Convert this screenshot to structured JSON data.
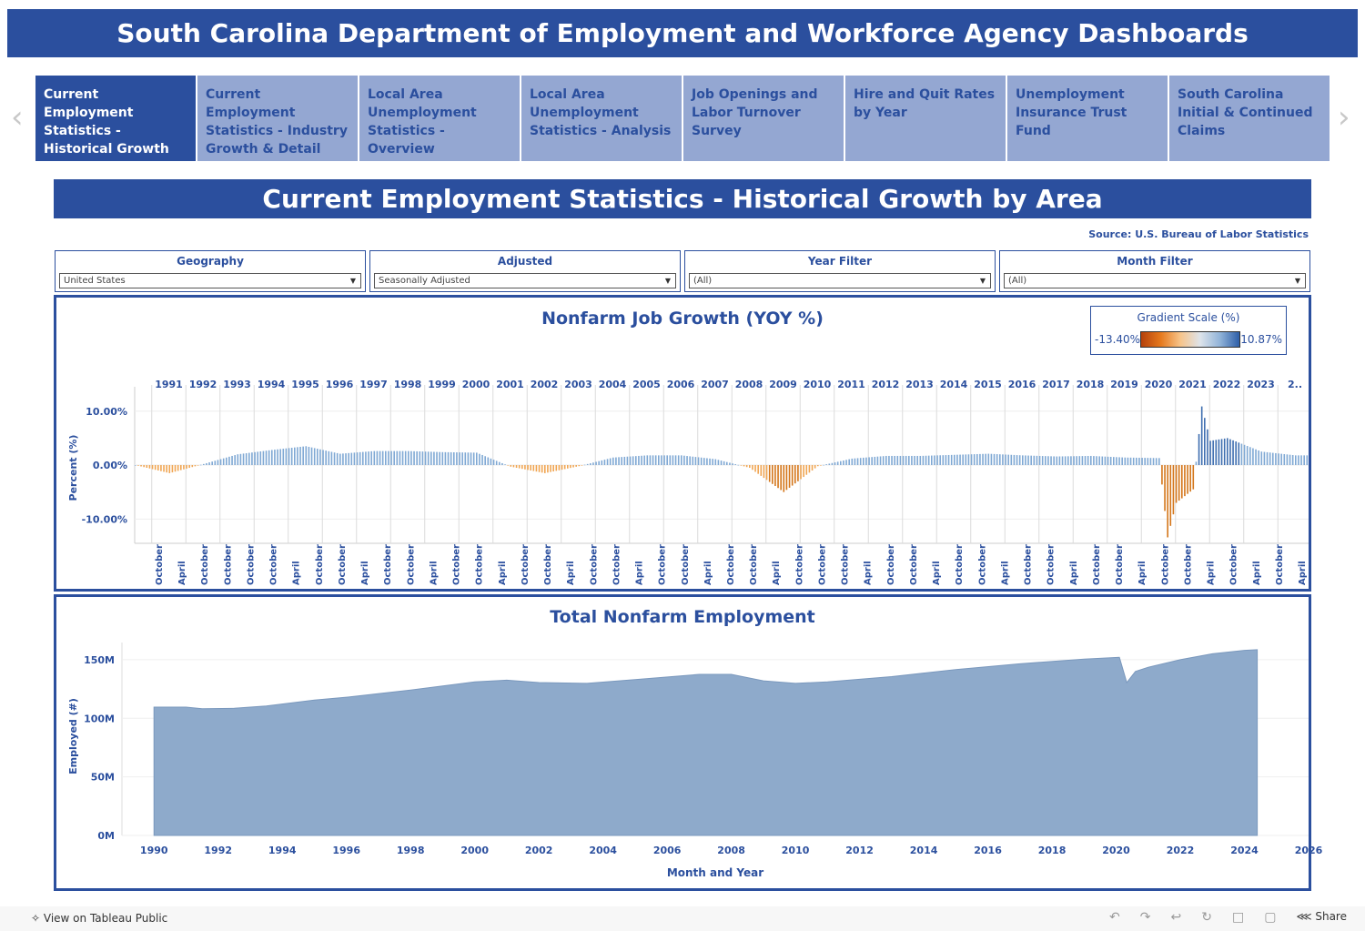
{
  "header": {
    "title": "South Carolina Department of Employment and Workforce Agency Dashboards"
  },
  "nav": {
    "prev_icon": "chevron-left-icon",
    "next_icon": "chevron-right-icon",
    "tabs": [
      {
        "label": "Current Employment Statistics - Historical Growth by Area"
      },
      {
        "label": "Current Employment Statistics - Industry Growth & Detail"
      },
      {
        "label": "Local Area Unemployment Statistics - Overview"
      },
      {
        "label": "Local Area Unemployment Statistics - Analysis"
      },
      {
        "label": "Job Openings and Labor Turnover Survey"
      },
      {
        "label": "Hire and Quit Rates by Year"
      },
      {
        "label": "Unemployment Insurance Trust Fund"
      },
      {
        "label": "South Carolina Initial & Continued Claims"
      }
    ]
  },
  "page": {
    "title": "Current Employment Statistics - Historical Growth by Area",
    "source": "Source: U.S. Bureau of Labor Statistics"
  },
  "filters": [
    {
      "label": "Geography",
      "value": "United States"
    },
    {
      "label": "Adjusted",
      "value": "Seasonally Adjusted"
    },
    {
      "label": "Year Filter",
      "value": "(All)"
    },
    {
      "label": "Month Filter",
      "value": "(All)"
    }
  ],
  "colors": {
    "brand": "#2b4f9e",
    "positive": "#5d8dc4",
    "negative": "#e07b1c"
  },
  "legend": {
    "title": "Gradient Scale (%)",
    "min": "-13.40%",
    "max": "10.87%"
  },
  "footer": {
    "view_on": "View on Tableau Public",
    "share": "Share"
  },
  "chart_data": [
    {
      "type": "bar",
      "title": "Nonfarm Job Growth (YOY %)",
      "ylabel": "Percent (%)",
      "ylim": [
        -14.5,
        13.5
      ],
      "yticks": [
        "10.00%",
        "0.00%",
        "-10.00%"
      ],
      "ytick_values": [
        10,
        0,
        -10
      ],
      "years": [
        "1991",
        "1992",
        "1993",
        "1994",
        "1995",
        "1996",
        "1997",
        "1998",
        "1999",
        "2000",
        "2001",
        "2002",
        "2003",
        "2004",
        "2005",
        "2006",
        "2007",
        "2008",
        "2009",
        "2010",
        "2011",
        "2012",
        "2013",
        "2014",
        "2015",
        "2016",
        "2017",
        "2018",
        "2019",
        "2020",
        "2021",
        "2022",
        "2023",
        "2.."
      ],
      "month_labels": [
        "October",
        "April",
        "October",
        "October",
        "October",
        "October",
        "April",
        "October",
        "October",
        "April",
        "October",
        "October",
        "April",
        "October",
        "October",
        "April",
        "October",
        "October",
        "April",
        "October",
        "October",
        "April",
        "October",
        "October",
        "April",
        "October",
        "October",
        "April",
        "October",
        "October",
        "October",
        "April",
        "October",
        "October",
        "April",
        "October",
        "October",
        "April",
        "October",
        "October",
        "April",
        "October",
        "October",
        "April",
        "October",
        "October",
        "April",
        "October",
        "April",
        "October",
        "April"
      ],
      "series_keypoints": [
        {
          "year": 1990.0,
          "value": 0.0
        },
        {
          "year": 1991.0,
          "value": -1.5
        },
        {
          "year": 1992.0,
          "value": 0.2
        },
        {
          "year": 1993.0,
          "value": 2.0
        },
        {
          "year": 1994.0,
          "value": 2.8
        },
        {
          "year": 1995.0,
          "value": 3.5
        },
        {
          "year": 1996.0,
          "value": 2.1
        },
        {
          "year": 1997.0,
          "value": 2.6
        },
        {
          "year": 1998.0,
          "value": 2.6
        },
        {
          "year": 1999.0,
          "value": 2.4
        },
        {
          "year": 2000.0,
          "value": 2.3
        },
        {
          "year": 2001.0,
          "value": -0.3
        },
        {
          "year": 2002.0,
          "value": -1.5
        },
        {
          "year": 2003.0,
          "value": -0.2
        },
        {
          "year": 2004.0,
          "value": 1.4
        },
        {
          "year": 2005.0,
          "value": 1.8
        },
        {
          "year": 2006.0,
          "value": 1.8
        },
        {
          "year": 2007.0,
          "value": 1.1
        },
        {
          "year": 2008.0,
          "value": -0.5
        },
        {
          "year": 2009.0,
          "value": -5.0
        },
        {
          "year": 2010.0,
          "value": -0.2
        },
        {
          "year": 2011.0,
          "value": 1.2
        },
        {
          "year": 2012.0,
          "value": 1.7
        },
        {
          "year": 2013.0,
          "value": 1.7
        },
        {
          "year": 2014.0,
          "value": 1.9
        },
        {
          "year": 2015.0,
          "value": 2.1
        },
        {
          "year": 2016.0,
          "value": 1.8
        },
        {
          "year": 2017.0,
          "value": 1.6
        },
        {
          "year": 2018.0,
          "value": 1.7
        },
        {
          "year": 2019.0,
          "value": 1.4
        },
        {
          "year": 2020.0,
          "value": 1.3
        },
        {
          "year": 2020.25,
          "value": -13.4
        },
        {
          "year": 2020.5,
          "value": -7.0
        },
        {
          "year": 2021.0,
          "value": -4.5
        },
        {
          "year": 2021.25,
          "value": 10.87
        },
        {
          "year": 2021.5,
          "value": 4.5
        },
        {
          "year": 2022.0,
          "value": 5.0
        },
        {
          "year": 2023.0,
          "value": 2.5
        },
        {
          "year": 2024.0,
          "value": 1.8
        }
      ]
    },
    {
      "type": "area",
      "title": "Total Nonfarm Employment",
      "xlabel": "Month and Year",
      "ylabel": "Employed (#)",
      "xlim": [
        1989,
        2026
      ],
      "ylim": [
        0,
        160
      ],
      "xticks": [
        1990,
        1992,
        1994,
        1996,
        1998,
        2000,
        2002,
        2004,
        2006,
        2008,
        2010,
        2012,
        2014,
        2016,
        2018,
        2020,
        2022,
        2024,
        2026
      ],
      "yticks": [
        "150M",
        "100M",
        "50M",
        "0M"
      ],
      "ytick_values": [
        150,
        100,
        50,
        0
      ],
      "points": [
        {
          "x": 1990.0,
          "y": 109.5
        },
        {
          "x": 1991.0,
          "y": 109.5
        },
        {
          "x": 1991.5,
          "y": 108.2
        },
        {
          "x": 1992.5,
          "y": 108.5
        },
        {
          "x": 1993.5,
          "y": 110.5
        },
        {
          "x": 1995.0,
          "y": 115.5
        },
        {
          "x": 1996.0,
          "y": 118.0
        },
        {
          "x": 1998.0,
          "y": 124.0
        },
        {
          "x": 2000.0,
          "y": 131.0
        },
        {
          "x": 2001.0,
          "y": 132.5
        },
        {
          "x": 2002.0,
          "y": 130.5
        },
        {
          "x": 2003.5,
          "y": 129.8
        },
        {
          "x": 2005.0,
          "y": 133.0
        },
        {
          "x": 2007.0,
          "y": 137.5
        },
        {
          "x": 2008.0,
          "y": 137.5
        },
        {
          "x": 2009.0,
          "y": 132.0
        },
        {
          "x": 2010.0,
          "y": 129.8
        },
        {
          "x": 2011.0,
          "y": 131.0
        },
        {
          "x": 2013.0,
          "y": 135.5
        },
        {
          "x": 2015.0,
          "y": 141.5
        },
        {
          "x": 2017.0,
          "y": 146.5
        },
        {
          "x": 2019.0,
          "y": 150.5
        },
        {
          "x": 2020.1,
          "y": 152.0
        },
        {
          "x": 2020.33,
          "y": 130.5
        },
        {
          "x": 2020.6,
          "y": 140.0
        },
        {
          "x": 2021.0,
          "y": 143.5
        },
        {
          "x": 2022.0,
          "y": 150.0
        },
        {
          "x": 2023.0,
          "y": 155.0
        },
        {
          "x": 2024.0,
          "y": 158.0
        },
        {
          "x": 2024.4,
          "y": 158.5
        }
      ]
    }
  ]
}
